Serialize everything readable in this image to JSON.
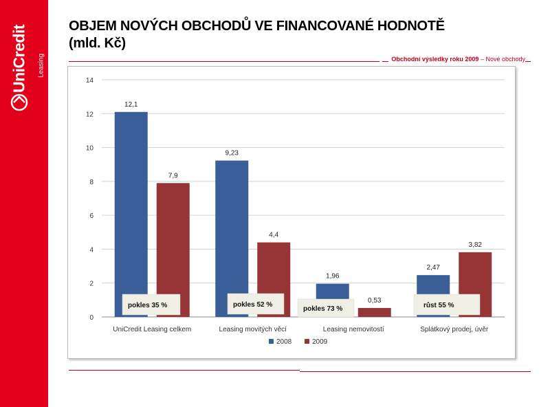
{
  "slide": {
    "title_line1": "OBJEM NOVÝCH OBCHODŮ VE FINANCOVANÉ HODNOTĚ",
    "title_line2": "(mld. Kč)",
    "header_note_bold": "Obchodní výsledky roku 2009",
    "header_note_rest": " – Nové obchody"
  },
  "logo": {
    "brand": "UniCredit",
    "sub": "Leasing"
  },
  "colors": {
    "brand_red": "#e2001a",
    "series_2008": "#3a5f98",
    "series_2009": "#953535",
    "callout_bg": "#efefe6"
  },
  "chart_data": {
    "type": "bar",
    "title": "",
    "xlabel": "",
    "ylabel": "",
    "ylim": [
      0,
      14
    ],
    "yticks": [
      0,
      2,
      4,
      6,
      8,
      10,
      12,
      14
    ],
    "grid": true,
    "legend_position": "bottom",
    "categories": [
      "UniCredit Leasing celkem",
      "Leasing movitých věcí",
      "Leasing nemovitostí",
      "Splátkový prodej, úvěr"
    ],
    "series": [
      {
        "name": "2008",
        "values": [
          12.1,
          9.23,
          1.96,
          2.47
        ],
        "labels": [
          "12,1",
          "9,23",
          "1,96",
          "2,47"
        ]
      },
      {
        "name": "2009",
        "values": [
          7.9,
          4.4,
          0.53,
          3.82
        ],
        "labels": [
          "7,9",
          "4,4",
          "0,53",
          "3,82"
        ]
      }
    ],
    "annotations": [
      "pokles 35 %",
      "pokles 52 %",
      "pokles 73 %",
      "růst 55 %"
    ]
  }
}
